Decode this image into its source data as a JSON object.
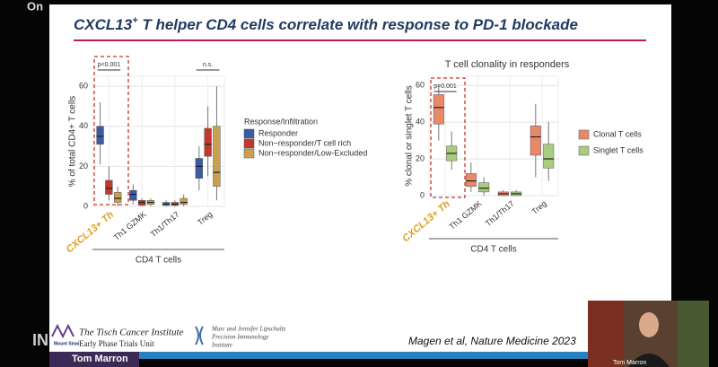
{
  "screen": {
    "corner_text": "On",
    "left_text": "IN"
  },
  "slide": {
    "title_gene": "CXCL13",
    "title_sup": "+",
    "title_rest": " T helper CD4 cells correlate with response to PD-1 blockade"
  },
  "charts": [
    {
      "type": "box",
      "ylabel": "% of total CD4+ T cells",
      "ylim": [
        0,
        65
      ],
      "yticks": [
        0,
        20,
        40,
        60
      ],
      "categories": [
        "CXCL13+ Th",
        "Th1 GZMK",
        "Th1/Th17",
        "Treg"
      ],
      "group_label": "CD4 T cells",
      "legend_title": "Response/Infiltration",
      "annotations": [
        "p<0.001",
        "n.s."
      ],
      "series": [
        {
          "name": "Responder",
          "color": "#3b5ba5",
          "values": [
            {
              "min": 21,
              "q1": 31,
              "median": 35,
              "q3": 40,
              "max": 52
            },
            {
              "min": 1,
              "q1": 3,
              "median": 6,
              "q3": 8,
              "max": 11
            },
            {
              "min": 0,
              "q1": 0.5,
              "median": 1,
              "q3": 2,
              "max": 3
            },
            {
              "min": 8,
              "q1": 14,
              "median": 20,
              "q3": 24,
              "max": 30
            }
          ]
        },
        {
          "name": "Non−responder/T cell rich",
          "color": "#c0392b",
          "values": [
            {
              "min": 3,
              "q1": 6,
              "median": 9,
              "q3": 13,
              "max": 20
            },
            {
              "min": 0,
              "q1": 0.5,
              "median": 2,
              "q3": 3,
              "max": 4
            },
            {
              "min": 0,
              "q1": 0.5,
              "median": 1,
              "q3": 2,
              "max": 3
            },
            {
              "min": 15,
              "q1": 25,
              "median": 31,
              "q3": 39,
              "max": 50
            }
          ]
        },
        {
          "name": "Non−responder/Low-Excluded",
          "color": "#c8a050",
          "values": [
            {
              "min": 0,
              "q1": 2,
              "median": 4,
              "q3": 7,
              "max": 10
            },
            {
              "min": 0,
              "q1": 1,
              "median": 2,
              "q3": 3,
              "max": 4
            },
            {
              "min": 0,
              "q1": 1,
              "median": 2,
              "q3": 4,
              "max": 6
            },
            {
              "min": 3,
              "q1": 10,
              "median": 17,
              "q3": 40,
              "max": 60
            }
          ]
        }
      ]
    },
    {
      "type": "box",
      "title": "T cell clonality in responders",
      "ylabel": "% clonal or singlet T cells",
      "ylim": [
        0,
        65
      ],
      "yticks": [
        0,
        20,
        40,
        60
      ],
      "categories": [
        "CXCL13+ Th",
        "Th1 GZMK",
        "Th1/Th17",
        "Treg"
      ],
      "group_label": "CD4 T cells",
      "annotations": [
        "p=0.001"
      ],
      "series": [
        {
          "name": "Clonal T cells",
          "color": "#e8896a",
          "values": [
            {
              "min": 30,
              "q1": 39,
              "median": 48,
              "q3": 55,
              "max": 60
            },
            {
              "min": 2,
              "q1": 5,
              "median": 8,
              "q3": 12,
              "max": 18
            },
            {
              "min": 0,
              "q1": 0,
              "median": 1,
              "q3": 2,
              "max": 3
            },
            {
              "min": 10,
              "q1": 22,
              "median": 32,
              "q3": 38,
              "max": 50
            }
          ]
        },
        {
          "name": "Singlet T cells",
          "color": "#a8cc80",
          "values": [
            {
              "min": 14,
              "q1": 19,
              "median": 23,
              "q3": 27,
              "max": 35
            },
            {
              "min": 0,
              "q1": 2,
              "median": 4,
              "q3": 7,
              "max": 10
            },
            {
              "min": 0,
              "q1": 0,
              "median": 1,
              "q3": 2,
              "max": 3
            },
            {
              "min": 8,
              "q1": 15,
              "median": 20,
              "q3": 28,
              "max": 40
            }
          ]
        }
      ]
    }
  ],
  "footer": {
    "institute": "The Tisch Cancer Institute",
    "unit": "Early Phase Trials Unit",
    "mount_sinai": "Mount Sinai",
    "precision_1": "Marc and Jennifer Lipschultz",
    "precision_2": "Precision Immunology",
    "precision_3": "Institute",
    "citation": "Magen et al, Nature Medicine 2023"
  },
  "speaker": {
    "bar_name": "Tom Marron",
    "video_name": "Tom Marron"
  }
}
